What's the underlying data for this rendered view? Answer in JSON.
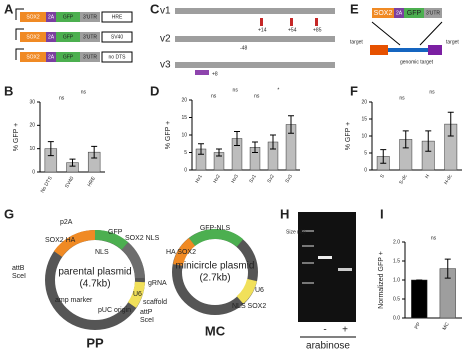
{
  "panel_labels": [
    "A",
    "B",
    "C",
    "D",
    "E",
    "F",
    "G",
    "H",
    "I"
  ],
  "construct": {
    "parts": [
      "SOX2",
      "2A",
      "GFP",
      "3'UTR"
    ],
    "elements": [
      "HRE",
      "SV40",
      "no DTS"
    ]
  },
  "variants": {
    "names": [
      "v1",
      "v2",
      "v3"
    ],
    "marks": [
      "+14",
      "+54",
      "+85",
      "+8",
      "-48"
    ]
  },
  "targeting": {
    "target": "target",
    "genomic": "genomic target"
  },
  "plasmids": {
    "parental": {
      "name": "parental plasmid",
      "size": "(4.7kb)",
      "short": "PP",
      "parts": [
        "p2A",
        "GFP",
        "SOX2 HA",
        "NLS",
        "SOX2 NLS",
        "U6",
        "gRNA",
        "scaffold",
        "attP",
        "SceI",
        "attB",
        "SceI",
        "pUC origin",
        "amp marker"
      ]
    },
    "minicircle": {
      "name": "minicircle plasmid",
      "size": "(2.7kb)",
      "short": "MC",
      "parts": [
        "GFP-NLS",
        "HA SOX2",
        "NLS SOX2",
        "U6"
      ]
    }
  },
  "gel": {
    "size_label": "Size (kb)",
    "lanes": [
      "-",
      "+"
    ],
    "treatment": "arabinose"
  },
  "chart_data": [
    {
      "type": "bar",
      "ylabel": "% GFP +",
      "categories": [
        "No DTS",
        "SV40",
        "HRE"
      ],
      "values": [
        10,
        4,
        8.5
      ],
      "errors": [
        3,
        1.5,
        2.5
      ],
      "color": "#bdbdbd",
      "ylim": [
        0,
        30
      ],
      "yticks": [
        0,
        10,
        20,
        30
      ],
      "annotations": [
        "ns",
        "ns"
      ]
    },
    {
      "type": "bar",
      "ylabel": "% GFP +",
      "categories": [
        "Hv1",
        "Hv2",
        "Hv3",
        "Sv1",
        "Sv2",
        "Sv3"
      ],
      "values": [
        6,
        5,
        9,
        6.5,
        8,
        13
      ],
      "errors": [
        1.5,
        1,
        2,
        1.5,
        2,
        2.5
      ],
      "color": "#bdbdbd",
      "ylim": [
        0,
        20
      ],
      "yticks": [
        0,
        5,
        10,
        15,
        20
      ],
      "annotations": [
        "ns",
        "ns",
        "ns",
        "*"
      ]
    },
    {
      "type": "bar",
      "ylabel": "% GFP +",
      "categories": [
        "S",
        "S-dc",
        "H",
        "H-dc"
      ],
      "values": [
        4,
        9,
        8.5,
        13.5
      ],
      "errors": [
        2,
        2.5,
        3,
        3.5
      ],
      "color": "#bdbdbd",
      "ylim": [
        0,
        20
      ],
      "yticks": [
        0,
        5,
        10,
        15,
        20
      ],
      "annotations": [
        "ns",
        "ns"
      ]
    },
    {
      "type": "bar",
      "ylabel": "Normalized GFP +",
      "categories": [
        "PP",
        "MC"
      ],
      "values": [
        1,
        1.3
      ],
      "errors": [
        0,
        0.25
      ],
      "colors": [
        "#000000",
        "#9e9e9e"
      ],
      "ylim": [
        0,
        2
      ],
      "yticks": [
        {
          "value": 0,
          "label": "0.0"
        },
        {
          "value": 0.5,
          "label": "0.5"
        },
        {
          "value": 1,
          "label": "1.0"
        },
        {
          "value": 1.5,
          "label": "1.5"
        },
        {
          "value": 2,
          "label": "2.0"
        }
      ],
      "annotations": [
        "ns"
      ]
    }
  ]
}
